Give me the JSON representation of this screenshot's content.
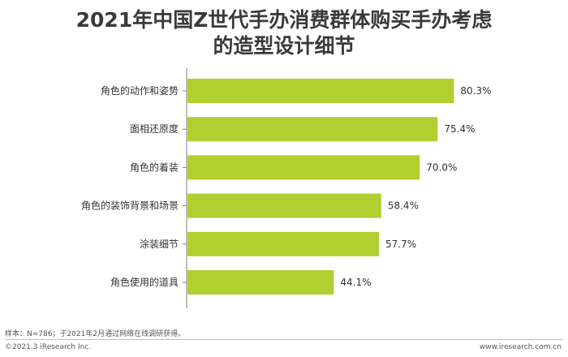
{
  "title_line1": "2021年中国Z世代手办消费群体购买手办考虑",
  "title_line2": "的造型设计细节",
  "chart_data": {
    "type": "bar",
    "orientation": "horizontal",
    "categories": [
      "角色的动作和姿势",
      "面相还原度",
      "角色的着装",
      "角色的装饰背景和场景",
      "涂装细节",
      "角色使用的道具"
    ],
    "values": [
      80.3,
      75.4,
      70.0,
      58.4,
      57.7,
      44.1
    ],
    "value_labels": [
      "80.3%",
      "75.4%",
      "70.0%",
      "58.4%",
      "57.7%",
      "44.1%"
    ],
    "unit": "%",
    "xlim": [
      0,
      100
    ],
    "grid": false,
    "legend": "none",
    "bar_color": "#b1cf30"
  },
  "footnote": "样本：N=786；于2021年2月通过网络在线调研获得。",
  "copyright": "©2021.3 iResearch Inc.",
  "website": "www.iresearch.com.cn"
}
